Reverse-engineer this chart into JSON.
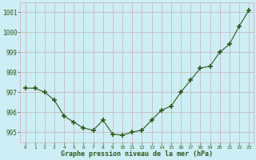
{
  "x": [
    0,
    1,
    2,
    3,
    4,
    5,
    6,
    7,
    8,
    9,
    10,
    11,
    12,
    13,
    14,
    15,
    16,
    17,
    18,
    19,
    20,
    21,
    22,
    23
  ],
  "y": [
    997.2,
    997.2,
    997.0,
    996.6,
    995.8,
    995.5,
    995.2,
    995.1,
    995.6,
    994.9,
    994.85,
    995.0,
    995.1,
    995.6,
    996.1,
    996.3,
    997.0,
    997.6,
    998.2,
    998.3,
    999.0,
    999.4,
    1000.3,
    1001.1
  ],
  "line_color": "#2d5a1b",
  "marker_color": "#2d5a1b",
  "bg_color": "#cdeef5",
  "grid_color": "#c8b0b0",
  "text_color": "#2d5a1b",
  "xlabel": "Graphe pression niveau de la mer (hPa)",
  "ylim": [
    994.5,
    1001.5
  ],
  "yticks": [
    995,
    996,
    997,
    998,
    999,
    1000,
    1001
  ],
  "xticks": [
    0,
    1,
    2,
    3,
    4,
    5,
    6,
    7,
    8,
    9,
    10,
    11,
    12,
    13,
    14,
    15,
    16,
    17,
    18,
    19,
    20,
    21,
    22,
    23
  ]
}
